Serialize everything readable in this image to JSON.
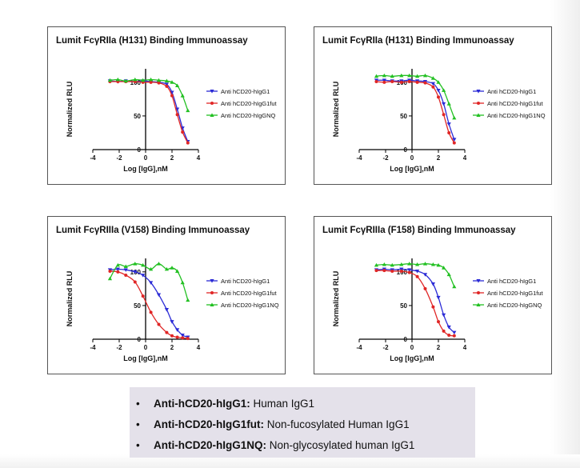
{
  "chart_data": [
    {
      "type": "line",
      "title": "Lumit FcγRIIa (H131) Binding Immunoassay",
      "xlabel": "Log [IgG],nM",
      "ylabel": "Normalized RLU",
      "xlim": [
        -4,
        4
      ],
      "ylim": [
        0,
        120
      ],
      "xticks": [
        -4,
        -2,
        0,
        2,
        4
      ],
      "yticks": [
        0,
        50,
        100
      ],
      "grid": false,
      "legend_position": "right",
      "series": [
        {
          "name": "Anti hCD20-hIgG1",
          "color": "#2b2bd6",
          "marker": "triangle-down",
          "x": [
            -2.7,
            -2.1,
            -1.5,
            -0.8,
            -0.2,
            0.4,
            1.0,
            1.6,
            2.0,
            2.4,
            2.8,
            3.2
          ],
          "y": [
            102,
            101,
            102,
            101,
            102,
            101,
            100,
            97,
            85,
            60,
            32,
            12
          ]
        },
        {
          "name": "Anti hCD20-hIgG1fut",
          "color": "#e02626",
          "marker": "circle",
          "x": [
            -2.7,
            -2.1,
            -1.5,
            -0.8,
            -0.2,
            0.4,
            1.0,
            1.6,
            2.0,
            2.4,
            2.8,
            3.2
          ],
          "y": [
            101,
            101,
            101,
            101,
            100,
            100,
            99,
            94,
            80,
            52,
            26,
            10
          ]
        },
        {
          "name": "Anti hCD20-hIgGNQ",
          "color": "#22c022",
          "marker": "triangle-up",
          "x": [
            -2.7,
            -2.1,
            -1.5,
            -0.8,
            -0.2,
            0.4,
            1.0,
            1.6,
            2.0,
            2.4,
            2.8,
            3.2
          ],
          "y": [
            103,
            104,
            102,
            104,
            103,
            104,
            103,
            102,
            100,
            95,
            80,
            58
          ]
        }
      ]
    },
    {
      "type": "line",
      "title": "Lumit FcγRIIa (H131) Binding Immunoassay",
      "xlabel": "Log [IgG],nM",
      "ylabel": "Normalized RLU",
      "xlim": [
        -4,
        4
      ],
      "ylim": [
        0,
        120
      ],
      "xticks": [
        -4,
        -2,
        0,
        2,
        4
      ],
      "yticks": [
        0,
        50,
        100
      ],
      "grid": false,
      "legend_position": "right",
      "series": [
        {
          "name": "Anti hCD20-hIgG1",
          "color": "#2b2bd6",
          "marker": "triangle-down",
          "x": [
            -2.7,
            -2.1,
            -1.5,
            -0.8,
            -0.2,
            0.4,
            1.0,
            1.6,
            2.0,
            2.4,
            2.8,
            3.2
          ],
          "y": [
            103,
            103,
            102,
            102,
            103,
            102,
            101,
            98,
            88,
            68,
            38,
            15
          ]
        },
        {
          "name": "Anti hCD20-hIgG1fut",
          "color": "#e02626",
          "marker": "circle",
          "x": [
            -2.7,
            -2.1,
            -1.5,
            -0.8,
            -0.2,
            0.4,
            1.0,
            1.6,
            2.0,
            2.4,
            2.8,
            3.2
          ],
          "y": [
            101,
            100,
            101,
            100,
            101,
            100,
            99,
            93,
            78,
            52,
            25,
            10
          ]
        },
        {
          "name": "Anti hCD20-hIgG1NQ",
          "color": "#22c022",
          "marker": "triangle-up",
          "x": [
            -2.7,
            -2.1,
            -1.5,
            -0.8,
            -0.2,
            0.4,
            1.0,
            1.6,
            2.0,
            2.4,
            2.8,
            3.2
          ],
          "y": [
            109,
            110,
            109,
            110,
            110,
            109,
            110,
            106,
            100,
            88,
            68,
            47
          ]
        }
      ]
    },
    {
      "type": "line",
      "title": "Lumit FcγRIIIa (V158) Binding Immunoassay",
      "xlabel": "Log [IgG],nM",
      "ylabel": "Normalized RLU",
      "xlim": [
        -4,
        4
      ],
      "ylim": [
        0,
        120
      ],
      "xticks": [
        -4,
        -2,
        0,
        2,
        4
      ],
      "yticks": [
        0,
        50,
        100
      ],
      "grid": false,
      "legend_position": "right",
      "series": [
        {
          "name": "Anti hCD20-hIgG1",
          "color": "#2b2bd6",
          "marker": "triangle-down",
          "x": [
            -2.7,
            -2.1,
            -1.5,
            -0.8,
            -0.2,
            0.4,
            1.0,
            1.6,
            2.0,
            2.4,
            2.8,
            3.2
          ],
          "y": [
            103,
            104,
            103,
            100,
            95,
            84,
            66,
            44,
            26,
            14,
            6,
            3
          ]
        },
        {
          "name": "Anti hCD20-hIgG1fut",
          "color": "#e02626",
          "marker": "circle",
          "x": [
            -2.7,
            -2.1,
            -1.5,
            -0.8,
            -0.2,
            0.4,
            1.0,
            1.6,
            2.0,
            2.4,
            2.8,
            3.2
          ],
          "y": [
            101,
            100,
            95,
            85,
            64,
            40,
            22,
            10,
            5,
            3,
            2,
            1
          ]
        },
        {
          "name": "Anti hCD20-hIgG1NQ",
          "color": "#22c022",
          "marker": "triangle-up",
          "x": [
            -2.7,
            -2.1,
            -1.5,
            -0.8,
            -0.2,
            0.4,
            1.0,
            1.6,
            2.0,
            2.4,
            2.8,
            3.2
          ],
          "y": [
            90,
            110,
            108,
            112,
            110,
            104,
            112,
            104,
            106,
            101,
            84,
            58
          ]
        }
      ]
    },
    {
      "type": "line",
      "title": "Lumit FcγRIIIa (F158) Binding Immunoassay",
      "xlabel": "Log [IgG],nM",
      "ylabel": "Normalized RLU",
      "xlim": [
        -4,
        4
      ],
      "ylim": [
        0,
        120
      ],
      "xticks": [
        -4,
        -2,
        0,
        2,
        4
      ],
      "yticks": [
        0,
        50,
        100
      ],
      "grid": false,
      "legend_position": "right",
      "series": [
        {
          "name": "Anti hCD20-hIgG1",
          "color": "#2b2bd6",
          "marker": "triangle-down",
          "x": [
            -2.7,
            -2.1,
            -1.5,
            -0.8,
            -0.2,
            0.4,
            1.0,
            1.6,
            2.0,
            2.4,
            2.8,
            3.2
          ],
          "y": [
            103,
            104,
            103,
            104,
            103,
            101,
            96,
            82,
            62,
            36,
            18,
            10
          ]
        },
        {
          "name": "Anti hCD20-hIgG1fut",
          "color": "#e02626",
          "marker": "circle",
          "x": [
            -2.7,
            -2.1,
            -1.5,
            -0.8,
            -0.2,
            0.4,
            1.0,
            1.6,
            2.0,
            2.4,
            2.8,
            3.2
          ],
          "y": [
            102,
            102,
            101,
            101,
            99,
            93,
            75,
            48,
            26,
            12,
            6,
            5
          ]
        },
        {
          "name": "Anti hCD20-hIgGNQ",
          "color": "#22c022",
          "marker": "triangle-up",
          "x": [
            -2.7,
            -2.1,
            -1.5,
            -0.8,
            -0.2,
            0.4,
            1.0,
            1.6,
            2.0,
            2.4,
            2.8,
            3.2
          ],
          "y": [
            110,
            111,
            110,
            111,
            112,
            111,
            112,
            111,
            110,
            106,
            96,
            78
          ]
        }
      ]
    }
  ],
  "legend_notes": [
    {
      "term": "Anti-hCD20-hIgG1:",
      "description": " Human IgG1"
    },
    {
      "term": "Anti-hCD20-hIgG1fut:",
      "description": " Non-fucosylated Human IgG1"
    },
    {
      "term": "Anti-hCD20-hIgG1NQ:",
      "description": " Non-glycosylated human IgG1"
    }
  ],
  "bullet": "•"
}
